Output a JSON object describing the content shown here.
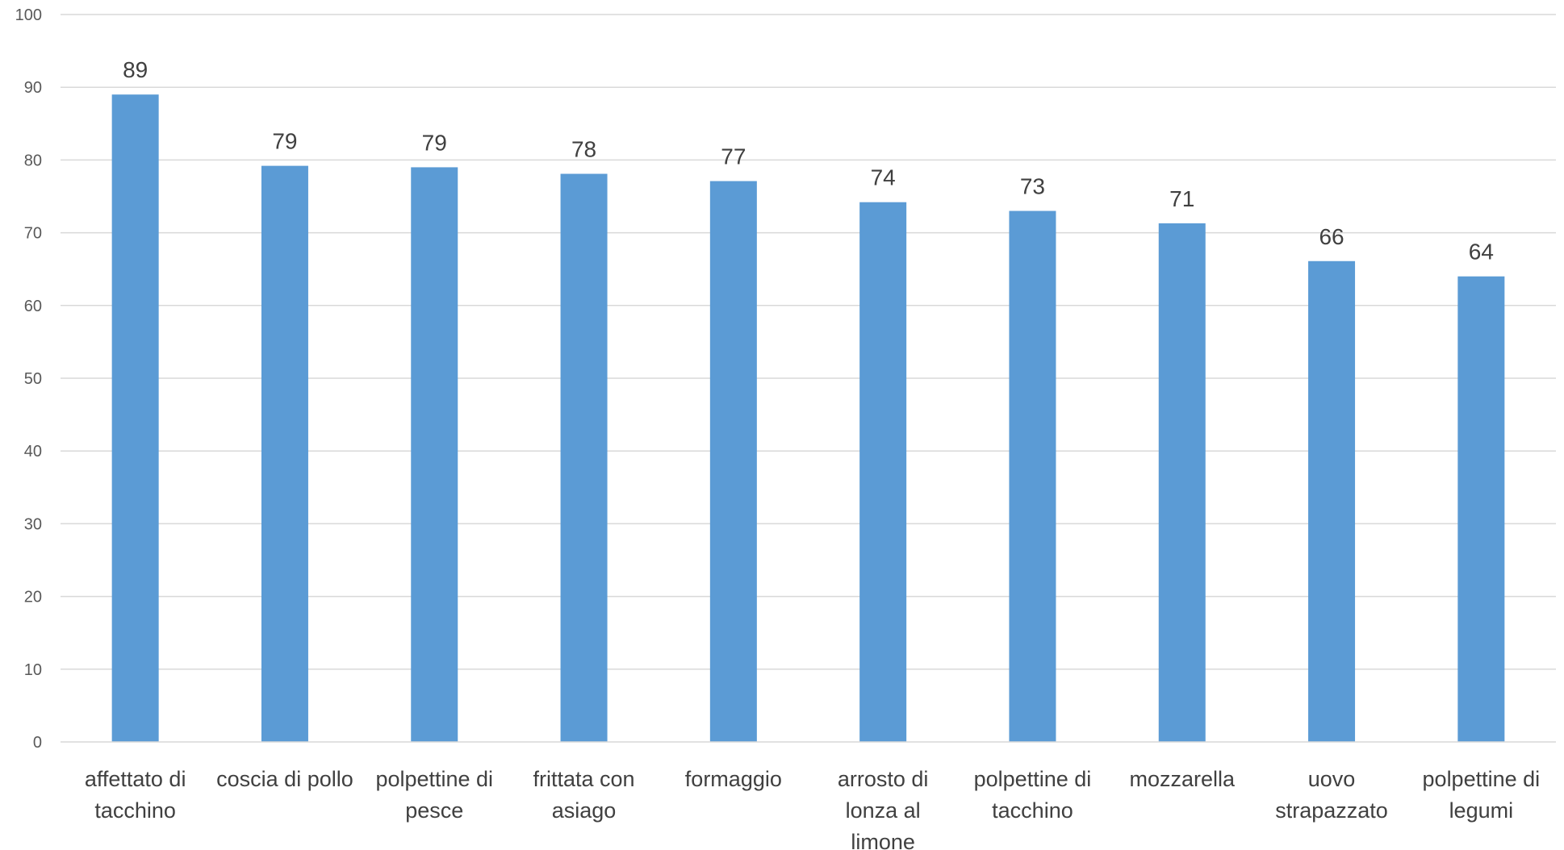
{
  "chart_data": {
    "type": "bar",
    "title": "",
    "xlabel": "",
    "ylabel": "",
    "ylim": [
      0,
      100
    ],
    "yticks": [
      0,
      10,
      20,
      30,
      40,
      50,
      60,
      70,
      80,
      90,
      100
    ],
    "grid": true,
    "legend": "none",
    "bar_color": "#5B9BD5",
    "categories": [
      [
        "affettato di",
        "tacchino"
      ],
      [
        "coscia di pollo"
      ],
      [
        "polpettine di",
        "pesce"
      ],
      [
        "frittata con",
        "asiago"
      ],
      [
        "formaggio"
      ],
      [
        "arrosto di",
        "lonza al",
        "limone"
      ],
      [
        "polpettine di",
        "tacchino"
      ],
      [
        "mozzarella"
      ],
      [
        "uovo",
        "strapazzato"
      ],
      [
        "polpettine di",
        "legumi"
      ]
    ],
    "values": [
      89,
      79.2,
      79,
      78.1,
      77.1,
      74.2,
      73,
      71.3,
      66.1,
      64
    ],
    "data_labels": [
      "89",
      "79",
      "79",
      "78",
      "77",
      "74",
      "73",
      "71",
      "66",
      "64"
    ]
  }
}
